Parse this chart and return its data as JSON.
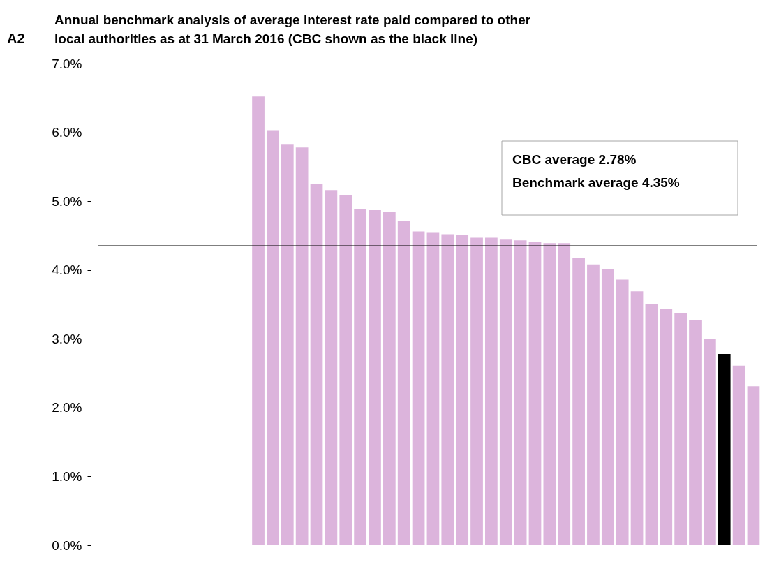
{
  "chart_data": {
    "type": "bar",
    "title": [
      "Annual benchmark analysis of average interest rate paid compared to other",
      "local authorities as at 31 March 2016  (CBC shown as the black line)"
    ],
    "categories": [
      null,
      null,
      null,
      null,
      null,
      null,
      null,
      null,
      null,
      null,
      null,
      null,
      null,
      null,
      null,
      null,
      null,
      null,
      null,
      null,
      null,
      null,
      null,
      null,
      null,
      null,
      null,
      null,
      null,
      null,
      null,
      null,
      null,
      null,
      null,
      null,
      null,
      null,
      null,
      null,
      null,
      null,
      null,
      null,
      null,
      null
    ],
    "values": [
      null,
      null,
      null,
      null,
      null,
      null,
      null,
      null,
      null,
      null,
      null,
      6.52,
      6.03,
      5.83,
      5.78,
      5.25,
      5.16,
      5.09,
      4.89,
      4.87,
      4.84,
      4.71,
      4.56,
      4.54,
      4.52,
      4.51,
      4.47,
      4.47,
      4.44,
      4.43,
      4.41,
      4.39,
      4.39,
      4.18,
      4.08,
      4.01,
      3.86,
      3.69,
      3.51,
      3.44,
      3.37,
      3.27,
      3.0,
      2.78,
      2.61,
      2.31
    ],
    "colors": [
      "#dcb4dc",
      "#dcb4dc",
      "#dcb4dc",
      "#dcb4dc",
      "#dcb4dc",
      "#dcb4dc",
      "#dcb4dc",
      "#dcb4dc",
      "#dcb4dc",
      "#dcb4dc",
      "#dcb4dc",
      "#dcb4dc",
      "#dcb4dc",
      "#dcb4dc",
      "#dcb4dc",
      "#dcb4dc",
      "#dcb4dc",
      "#dcb4dc",
      "#dcb4dc",
      "#dcb4dc",
      "#dcb4dc",
      "#dcb4dc",
      "#dcb4dc",
      "#dcb4dc",
      "#dcb4dc",
      "#dcb4dc",
      "#dcb4dc",
      "#dcb4dc",
      "#dcb4dc",
      "#dcb4dc",
      "#dcb4dc",
      "#dcb4dc",
      "#dcb4dc",
      "#dcb4dc",
      "#dcb4dc",
      "#dcb4dc",
      "#dcb4dc",
      "#dcb4dc",
      "#dcb4dc",
      "#dcb4dc",
      "#dcb4dc",
      "#dcb4dc",
      "#dcb4dc",
      "#000000",
      "#dcb4dc",
      "#dcb4dc"
    ],
    "ylim": [
      0,
      7
    ],
    "yticks": [
      {
        "value": 0,
        "label": "0.0%"
      },
      {
        "value": 1,
        "label": "1.0%"
      },
      {
        "value": 2,
        "label": "2.0%"
      },
      {
        "value": 3,
        "label": "3.0%"
      },
      {
        "value": 4,
        "label": "4.0%"
      },
      {
        "value": 5,
        "label": "5.0%"
      },
      {
        "value": 6,
        "label": "6.0%"
      },
      {
        "value": 7,
        "label": "7.0%"
      }
    ],
    "ref_lines": [
      {
        "axis": "y",
        "value": 4.35,
        "color": "#000000"
      }
    ],
    "annotations": [
      "A2",
      "CBC average 2.78%",
      "Benchmark average  4.35%"
    ],
    "grid": false
  }
}
